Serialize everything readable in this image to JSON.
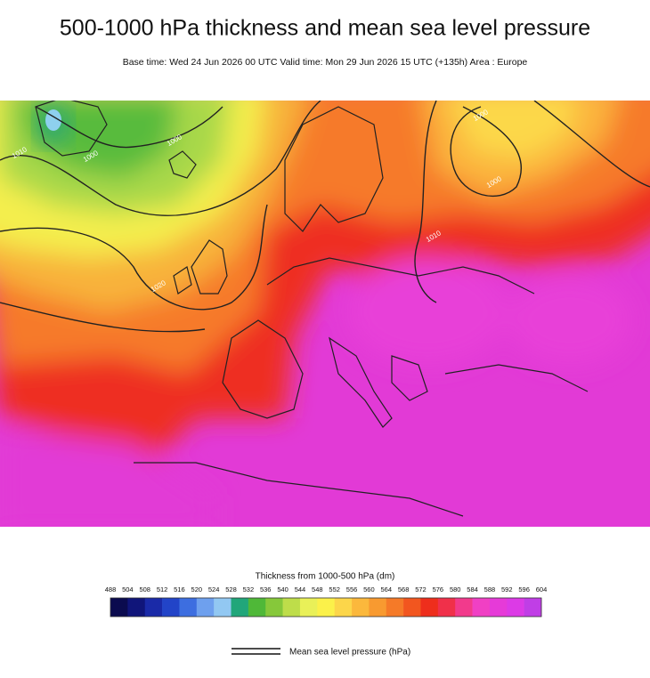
{
  "header": {
    "title": "500-1000 hPa thickness and mean sea level pressure",
    "subtitle": "Base time: Wed 24 Jun 2026 00 UTC Valid time: Mon 29 Jun 2026 15 UTC (+135h) Area : Europe"
  },
  "map": {
    "contour_labels": [
      "1010",
      "1000",
      "1000",
      "1020",
      "1000",
      "1000",
      "1010"
    ]
  },
  "colorbar": {
    "label": "Thickness from 1000-500 hPa (dm)",
    "ticks": [
      488,
      504,
      508,
      512,
      516,
      520,
      524,
      528,
      532,
      536,
      540,
      544,
      548,
      552,
      556,
      560,
      564,
      568,
      572,
      576,
      580,
      584,
      588,
      592,
      596,
      604
    ],
    "colors": [
      "#0b0b4f",
      "#10157a",
      "#1a2aa8",
      "#2244c8",
      "#3d6ee0",
      "#6ea0ee",
      "#92c8f2",
      "#21a67a",
      "#4fb838",
      "#86c83a",
      "#bedd4a",
      "#e9f058",
      "#fbf14a",
      "#fcd64a",
      "#fbb83c",
      "#f89a30",
      "#f57a28",
      "#f2561f",
      "#ee2e1c",
      "#f0304a",
      "#f23a8c",
      "#f040c4",
      "#e63ad8",
      "#dc3ae6",
      "#c03ee6"
    ]
  },
  "legend": {
    "label": "Mean sea level pressure (hPa)"
  }
}
